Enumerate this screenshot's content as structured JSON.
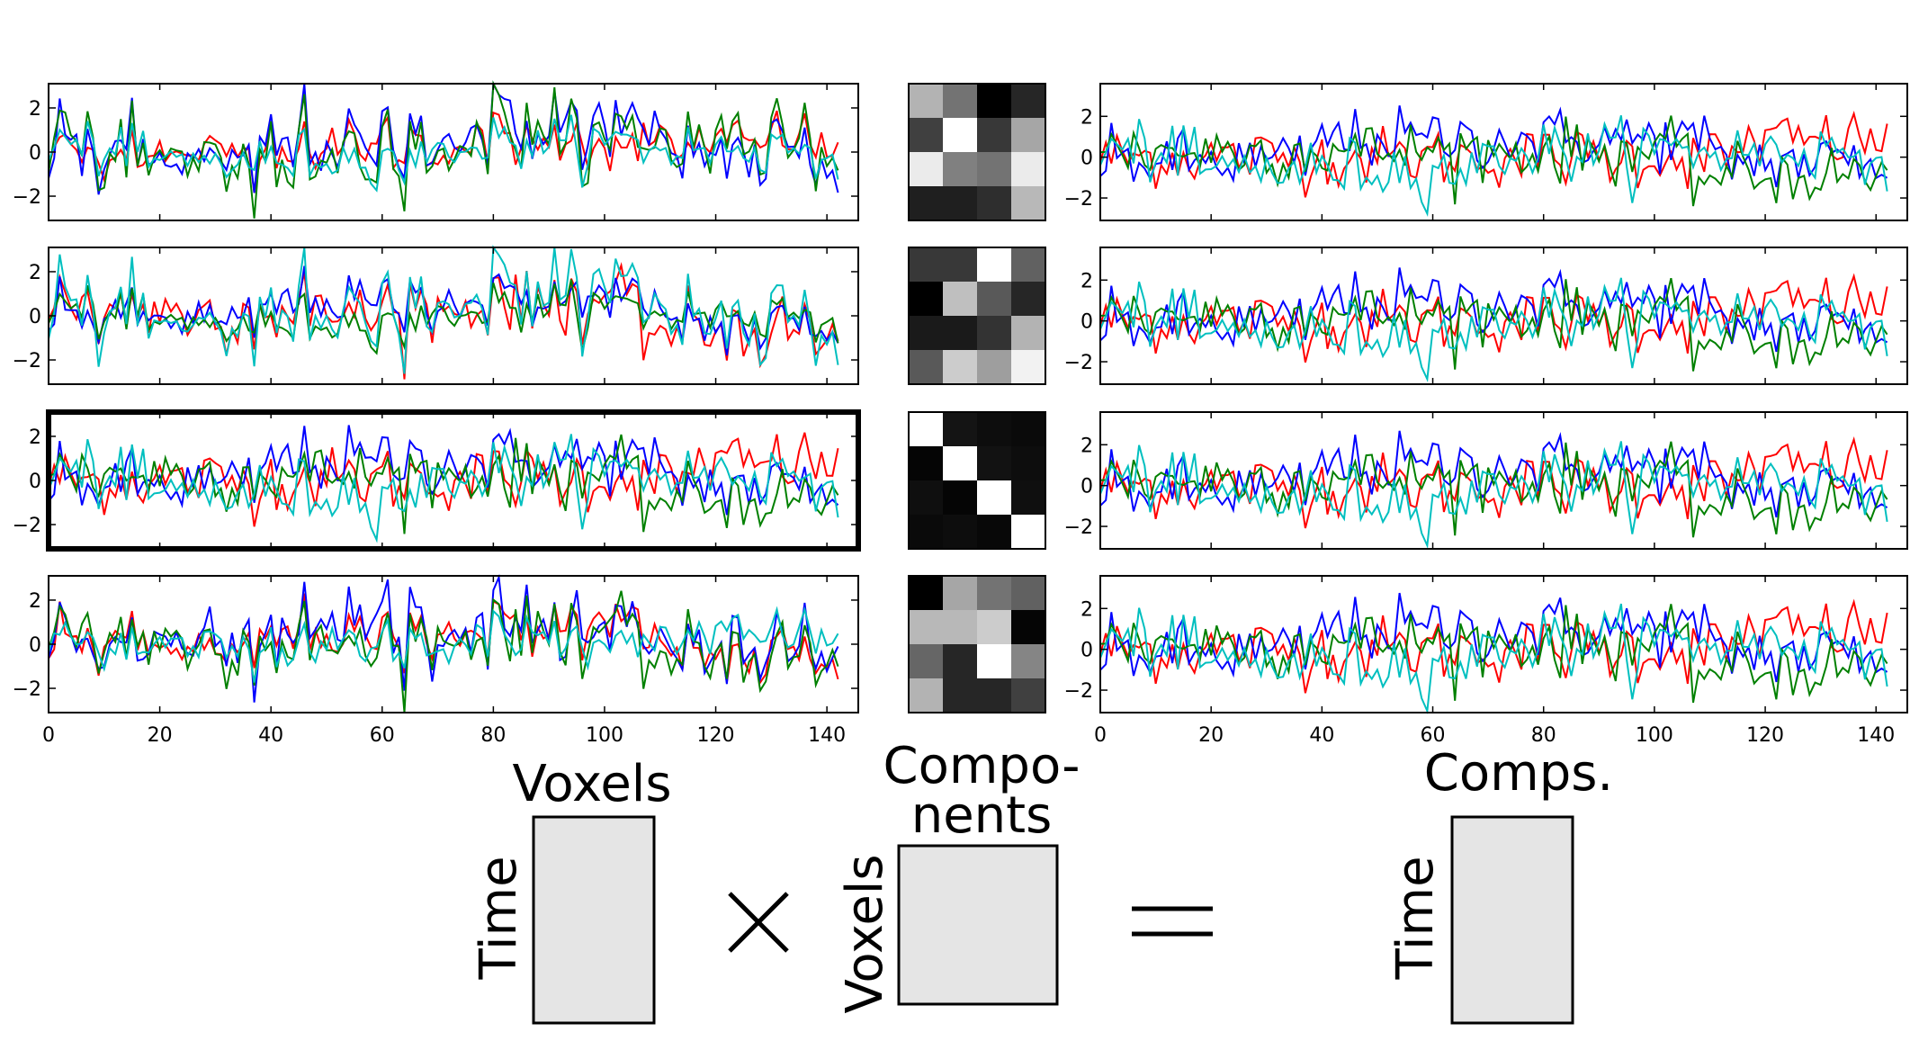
{
  "colors": {
    "red": "#ff0000",
    "blue": "#0000ff",
    "green": "#008000",
    "cyan": "#00bfbf",
    "frame": "#000000",
    "matrix_fill": "#e5e5e5"
  },
  "time_length": 143,
  "x_ticks": [
    "0",
    "20",
    "40",
    "60",
    "80",
    "100",
    "120",
    "140"
  ],
  "left_y_ticks": [
    "2",
    "0",
    "−2"
  ],
  "right_y_ticks": [
    [
      "2",
      "0",
      "−2"
    ],
    [
      "2",
      "0",
      "−2"
    ],
    [
      "2",
      "0",
      "−2"
    ],
    [
      "2",
      "0",
      "−2"
    ]
  ],
  "highlighted_left_row": 3,
  "mixing_matrices": [
    [
      [
        0.7,
        0.45,
        0.0,
        0.15
      ],
      [
        0.25,
        1.0,
        0.22,
        0.65
      ],
      [
        0.92,
        0.5,
        0.45,
        0.92
      ],
      [
        0.12,
        0.12,
        0.18,
        0.72
      ]
    ],
    [
      [
        0.22,
        0.22,
        1.0,
        0.38
      ],
      [
        0.0,
        0.75,
        0.35,
        0.15
      ],
      [
        0.1,
        0.1,
        0.2,
        0.7
      ],
      [
        0.35,
        0.8,
        0.62,
        0.95
      ]
    ],
    [
      [
        1.0,
        0.08,
        0.05,
        0.04
      ],
      [
        0.02,
        1.0,
        0.07,
        0.05
      ],
      [
        0.06,
        0.02,
        1.0,
        0.06
      ],
      [
        0.04,
        0.05,
        0.03,
        1.0
      ]
    ],
    [
      [
        0.0,
        0.65,
        0.45,
        0.38
      ],
      [
        0.72,
        0.72,
        0.8,
        0.02
      ],
      [
        0.4,
        0.15,
        1.0,
        0.52
      ],
      [
        0.7,
        0.15,
        0.15,
        0.25
      ]
    ]
  ],
  "equation": {
    "left": {
      "top_label": "Voxels",
      "side_label": "Time"
    },
    "times_symbol": "×",
    "middle": {
      "top_label_line1": "Compo-",
      "top_label_line2": "nents",
      "side_label": "Voxels"
    },
    "equals_symbol": "=",
    "right": {
      "top_label": "Comps.",
      "side_label": "Time"
    }
  }
}
